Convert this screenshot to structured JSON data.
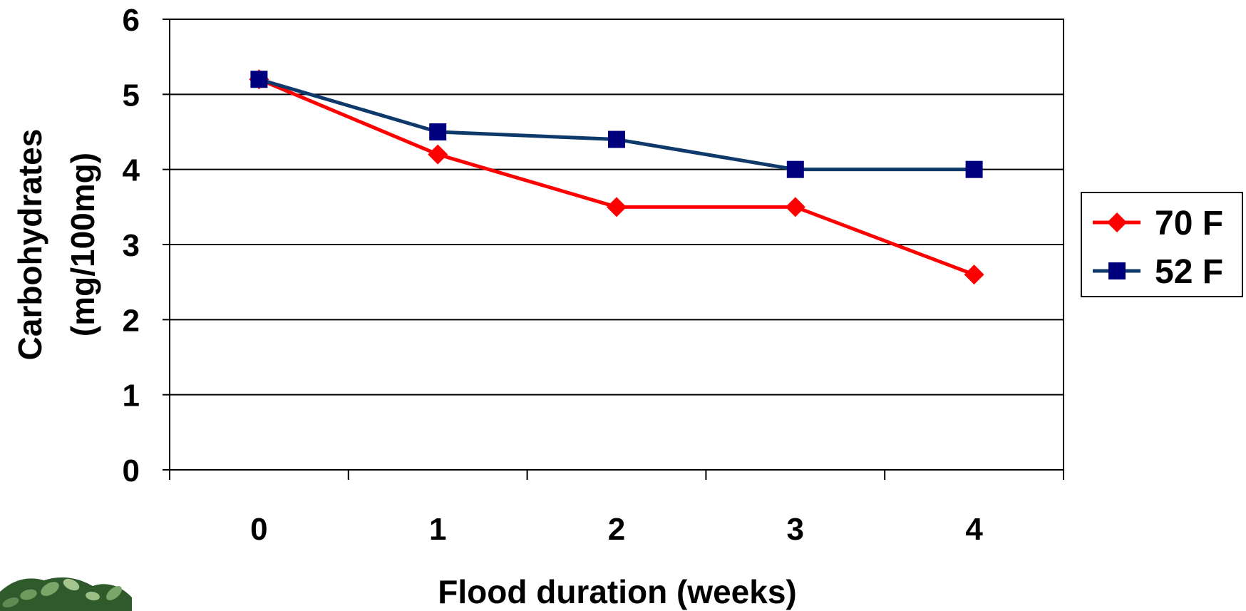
{
  "chart_data": {
    "type": "line",
    "title": "",
    "xlabel": "Flood duration (weeks)",
    "ylabel_lines": [
      "Carbohydrates",
      "(mg/100mg)"
    ],
    "categories": [
      "0",
      "1",
      "2",
      "3",
      "4"
    ],
    "ylim": [
      0,
      6
    ],
    "yticks": [
      "0",
      "1",
      "2",
      "3",
      "4",
      "5",
      "6"
    ],
    "grid": "horizontal",
    "legend_position": "right",
    "series": [
      {
        "name": "70 F",
        "values": [
          5.2,
          4.2,
          3.5,
          3.5,
          2.6
        ],
        "color": "#ff0000",
        "marker": "diamond"
      },
      {
        "name": "52 F",
        "values": [
          5.2,
          4.5,
          4.4,
          4.0,
          4.0
        ],
        "color": "#0d3a6b",
        "marker": "square",
        "marker_color": "#00007f"
      }
    ]
  },
  "decorations": {
    "logo": "leafy-plant-icon"
  }
}
